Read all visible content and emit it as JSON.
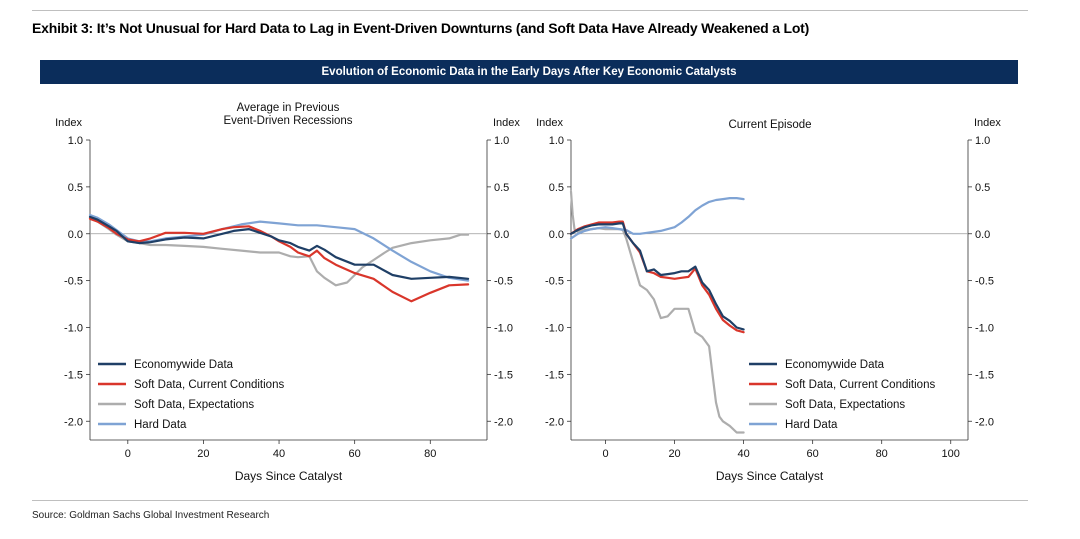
{
  "exhibit_title": "Exhibit 3: It’s Not Unusual for Hard Data to Lag in Event-Driven Downturns (and Soft Data Have Already Weakened a Lot)",
  "banner_title": "Evolution of Economic Data in the Early Days After Key Economic Catalysts",
  "source": "Source: Goldman Sachs Global Investment Research",
  "colors": {
    "banner_bg": "#0b2d5b",
    "economywide": "#1f3f66",
    "soft_current": "#d9362b",
    "soft_expectations": "#adadad",
    "hard": "#7fa3d4"
  },
  "chart_data": [
    {
      "type": "line",
      "title": "Average in Previous Event-Driven Recessions",
      "title_lines": [
        "Average in Previous",
        "Event-Driven Recessions"
      ],
      "xlabel": "Days Since Catalyst",
      "ylabel_left": "Index",
      "ylabel_right": "Index",
      "xlim": [
        -10,
        95
      ],
      "ylim": [
        -2.2,
        1.0
      ],
      "xticks": [
        0,
        20,
        40,
        60,
        80
      ],
      "yticks": [
        1.0,
        0.5,
        0.0,
        -0.5,
        -1.0,
        -1.5,
        -2.0
      ],
      "ytick_labels": [
        "1.0",
        "0.5",
        "0.0",
        "-0.5",
        "-1.0",
        "-1.5",
        "-2.0"
      ],
      "xtick_labels": [
        "0",
        "20",
        "40",
        "60",
        "80"
      ],
      "legend": [
        "Economywide Data",
        "Soft Data, Current Conditions",
        "Soft Data, Expectations",
        "Hard Data"
      ],
      "series": [
        {
          "name": "Economywide Data",
          "color": "#1f3f66",
          "x": [
            -10,
            -8,
            -5,
            -3,
            0,
            3,
            6,
            10,
            15,
            20,
            25,
            28,
            32,
            35,
            38,
            40,
            43,
            45,
            48,
            50,
            52,
            55,
            60,
            65,
            70,
            75,
            80,
            85,
            90
          ],
          "values": [
            0.18,
            0.15,
            0.08,
            0.03,
            -0.08,
            -0.1,
            -0.09,
            -0.06,
            -0.04,
            -0.05,
            0.0,
            0.03,
            0.05,
            0.01,
            -0.03,
            -0.07,
            -0.1,
            -0.14,
            -0.18,
            -0.13,
            -0.17,
            -0.25,
            -0.33,
            -0.33,
            -0.44,
            -0.48,
            -0.47,
            -0.46,
            -0.48
          ]
        },
        {
          "name": "Soft Data, Current Conditions",
          "color": "#d9362b",
          "x": [
            -10,
            -8,
            -5,
            -3,
            0,
            3,
            6,
            10,
            15,
            20,
            25,
            28,
            32,
            35,
            38,
            40,
            43,
            45,
            48,
            50,
            52,
            55,
            60,
            65,
            70,
            75,
            80,
            85,
            90
          ],
          "values": [
            0.16,
            0.13,
            0.06,
            0.0,
            -0.06,
            -0.08,
            -0.05,
            0.01,
            0.01,
            0.0,
            0.05,
            0.07,
            0.08,
            0.03,
            -0.03,
            -0.08,
            -0.14,
            -0.2,
            -0.24,
            -0.18,
            -0.26,
            -0.33,
            -0.42,
            -0.48,
            -0.62,
            -0.72,
            -0.63,
            -0.55,
            -0.54
          ]
        },
        {
          "name": "Soft Data, Expectations",
          "color": "#adadad",
          "x": [
            -10,
            -8,
            -5,
            -3,
            0,
            3,
            6,
            10,
            15,
            20,
            25,
            30,
            35,
            40,
            43,
            45,
            48,
            50,
            52,
            55,
            58,
            60,
            62,
            65,
            68,
            70,
            75,
            80,
            85,
            88,
            90
          ],
          "values": [
            0.17,
            0.13,
            0.05,
            -0.01,
            -0.08,
            -0.1,
            -0.12,
            -0.12,
            -0.13,
            -0.14,
            -0.16,
            -0.18,
            -0.2,
            -0.2,
            -0.24,
            -0.25,
            -0.24,
            -0.4,
            -0.47,
            -0.55,
            -0.52,
            -0.44,
            -0.36,
            -0.28,
            -0.2,
            -0.15,
            -0.1,
            -0.07,
            -0.05,
            -0.01,
            -0.01
          ]
        },
        {
          "name": "Hard Data",
          "color": "#7fa3d4",
          "x": [
            -10,
            -8,
            -5,
            -3,
            0,
            3,
            6,
            10,
            15,
            20,
            25,
            30,
            35,
            40,
            45,
            50,
            55,
            60,
            65,
            70,
            75,
            80,
            85,
            90
          ],
          "values": [
            0.2,
            0.17,
            0.1,
            0.04,
            -0.05,
            -0.08,
            -0.08,
            -0.05,
            -0.03,
            -0.01,
            0.05,
            0.1,
            0.13,
            0.11,
            0.09,
            0.09,
            0.07,
            0.05,
            -0.05,
            -0.18,
            -0.3,
            -0.4,
            -0.47,
            -0.5
          ]
        }
      ]
    },
    {
      "type": "line",
      "title": "Current Episode",
      "title_lines": [
        "Current Episode"
      ],
      "xlabel": "Days Since Catalyst",
      "ylabel_left": "Index",
      "ylabel_right": "Index",
      "xlim": [
        -10,
        105
      ],
      "ylim": [
        -2.2,
        1.0
      ],
      "xticks": [
        0,
        20,
        40,
        60,
        80,
        100
      ],
      "yticks": [
        1.0,
        0.5,
        0.0,
        -0.5,
        -1.0,
        -1.5,
        -2.0
      ],
      "ytick_labels": [
        "1.0",
        "0.5",
        "0.0",
        "-0.5",
        "-1.0",
        "-1.5",
        "-2.0"
      ],
      "xtick_labels": [
        "0",
        "20",
        "40",
        "60",
        "80",
        "100"
      ],
      "legend": [
        "Economywide Data",
        "Soft Data, Current Conditions",
        "Soft Data, Expectations",
        "Hard Data"
      ],
      "series": [
        {
          "name": "Economywide Data",
          "color": "#1f3f66",
          "x": [
            -10,
            -8,
            -6,
            -4,
            -2,
            0,
            2,
            4,
            5,
            6,
            8,
            10,
            12,
            14,
            16,
            18,
            20,
            22,
            24,
            26,
            28,
            30,
            32,
            34,
            36,
            38,
            40
          ],
          "values": [
            0.0,
            0.04,
            0.07,
            0.09,
            0.1,
            0.1,
            0.1,
            0.11,
            0.11,
            0.0,
            -0.1,
            -0.18,
            -0.4,
            -0.38,
            -0.44,
            -0.43,
            -0.42,
            -0.4,
            -0.4,
            -0.35,
            -0.52,
            -0.6,
            -0.75,
            -0.88,
            -0.93,
            -1.0,
            -1.02
          ]
        },
        {
          "name": "Soft Data, Current Conditions",
          "color": "#d9362b",
          "x": [
            -10,
            -8,
            -6,
            -4,
            -2,
            0,
            2,
            4,
            5,
            6,
            8,
            10,
            12,
            14,
            16,
            18,
            20,
            22,
            24,
            26,
            28,
            30,
            32,
            34,
            36,
            38,
            40
          ],
          "values": [
            0.0,
            0.05,
            0.08,
            0.1,
            0.12,
            0.12,
            0.12,
            0.13,
            0.13,
            0.0,
            -0.1,
            -0.2,
            -0.4,
            -0.42,
            -0.46,
            -0.47,
            -0.48,
            -0.47,
            -0.46,
            -0.37,
            -0.55,
            -0.65,
            -0.8,
            -0.92,
            -0.98,
            -1.03,
            -1.05
          ]
        },
        {
          "name": "Soft Data, Expectations",
          "color": "#adadad",
          "x": [
            -10,
            -9.5,
            -9,
            -8,
            -6,
            -4,
            -2,
            0,
            2,
            4,
            5,
            6,
            8,
            10,
            12,
            14,
            16,
            18,
            20,
            22,
            24,
            26,
            28,
            30,
            31,
            32,
            33,
            34,
            36,
            38,
            40
          ],
          "values": [
            0.45,
            0.2,
            0.05,
            0.02,
            0.04,
            0.05,
            0.06,
            0.05,
            0.05,
            0.05,
            0.04,
            -0.05,
            -0.3,
            -0.55,
            -0.6,
            -0.7,
            -0.9,
            -0.88,
            -0.8,
            -0.8,
            -0.8,
            -1.05,
            -1.1,
            -1.2,
            -1.5,
            -1.8,
            -1.95,
            -2.0,
            -2.05,
            -2.12,
            -2.12
          ]
        },
        {
          "name": "Hard Data",
          "color": "#7fa3d4",
          "x": [
            -10,
            -8,
            -6,
            -4,
            -2,
            0,
            2,
            4,
            6,
            8,
            10,
            12,
            14,
            16,
            18,
            20,
            22,
            24,
            26,
            28,
            30,
            32,
            34,
            36,
            38,
            40
          ],
          "values": [
            -0.05,
            0.0,
            0.03,
            0.05,
            0.06,
            0.07,
            0.06,
            0.05,
            0.04,
            0.0,
            0.0,
            0.01,
            0.02,
            0.03,
            0.05,
            0.07,
            0.12,
            0.18,
            0.25,
            0.3,
            0.34,
            0.36,
            0.37,
            0.38,
            0.38,
            0.37
          ]
        }
      ]
    }
  ]
}
